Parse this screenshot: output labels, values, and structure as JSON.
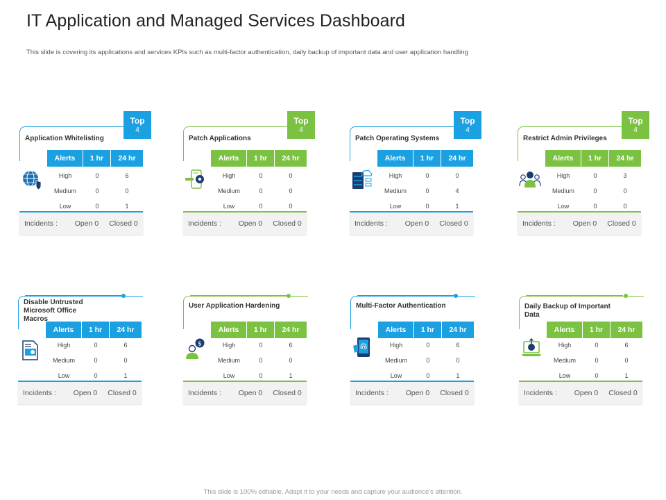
{
  "title": "IT Application and Managed Services Dashboard",
  "subtitle": "This slide is covering its applications and services KPIs such as multi-factor authentication, daily backup of important data and user application handling",
  "footer": "This slide is 100% editable. Adapt it to your needs and capture your audience's attention.",
  "headers": {
    "alerts": "Alerts",
    "h1": "1 hr",
    "h24": "24 hr"
  },
  "incidents_label": "Incidents :",
  "top_badge": {
    "label": "Top",
    "num": "4"
  },
  "colors": {
    "blue": "#1ba1e2",
    "green": "#7cc242"
  },
  "cards": [
    {
      "name": "Application Whitelisting",
      "color": "blue",
      "icon": "globe-shield-icon",
      "rows": [
        {
          "level": "High",
          "h1": "0",
          "h24": "6"
        },
        {
          "level": "Medium",
          "h1": "0",
          "h24": "0"
        },
        {
          "level": "Low",
          "h1": "0",
          "h24": "1"
        }
      ],
      "open": "Open 0",
      "closed": "Closed 0"
    },
    {
      "name": "Patch Applications",
      "color": "green",
      "icon": "phone-gear-icon",
      "rows": [
        {
          "level": "High",
          "h1": "0",
          "h24": "0"
        },
        {
          "level": "Medium",
          "h1": "0",
          "h24": "0"
        },
        {
          "level": "Low",
          "h1": "0",
          "h24": "0"
        }
      ],
      "open": "Open 0",
      "closed": "Closed 0"
    },
    {
      "name": "Patch Operating Systems",
      "color": "blue",
      "icon": "server-cloud-icon",
      "rows": [
        {
          "level": "High",
          "h1": "0",
          "h24": "0"
        },
        {
          "level": "Medium",
          "h1": "0",
          "h24": "4"
        },
        {
          "level": "Low",
          "h1": "0",
          "h24": "1"
        }
      ],
      "open": "Open 0",
      "closed": "Closed 0"
    },
    {
      "name": "Restrict Admin Privileges",
      "color": "green",
      "icon": "admin-users-icon",
      "rows": [
        {
          "level": "High",
          "h1": "0",
          "h24": "3"
        },
        {
          "level": "Medium",
          "h1": "0",
          "h24": "0"
        },
        {
          "level": "Low",
          "h1": "0",
          "h24": "0"
        }
      ],
      "open": "Open 0",
      "closed": "Closed 0"
    },
    {
      "name": "Disable Untrusted Microsoft Office Macros",
      "color": "blue",
      "icon": "document-icon",
      "rows": [
        {
          "level": "High",
          "h1": "0",
          "h24": "6"
        },
        {
          "level": "Medium",
          "h1": "0",
          "h24": "0"
        },
        {
          "level": "Low",
          "h1": "0",
          "h24": "1"
        }
      ],
      "open": "Open 0",
      "closed": "Closed 0"
    },
    {
      "name": "User Application Hardening",
      "color": "green",
      "icon": "user-dollar-icon",
      "rows": [
        {
          "level": "High",
          "h1": "0",
          "h24": "6"
        },
        {
          "level": "Medium",
          "h1": "0",
          "h24": "0"
        },
        {
          "level": "Low",
          "h1": "0",
          "h24": "1"
        }
      ],
      "open": "Open 0",
      "closed": "Closed 0"
    },
    {
      "name": "Multi-Factor Authentication",
      "color": "blue",
      "icon": "phone-fingerprint-icon",
      "rows": [
        {
          "level": "High",
          "h1": "0",
          "h24": "6"
        },
        {
          "level": "Medium",
          "h1": "0",
          "h24": "0"
        },
        {
          "level": "Low",
          "h1": "0",
          "h24": "1"
        }
      ],
      "open": "Open 0",
      "closed": "Closed 0"
    },
    {
      "name": "Daily Backup of Important Data",
      "color": "green",
      "icon": "laptop-backup-icon",
      "rows": [
        {
          "level": "High",
          "h1": "0",
          "h24": "6"
        },
        {
          "level": "Medium",
          "h1": "0",
          "h24": "0"
        },
        {
          "level": "Low",
          "h1": "0",
          "h24": "1"
        }
      ],
      "open": "Open 0",
      "closed": "Closed 0"
    }
  ]
}
